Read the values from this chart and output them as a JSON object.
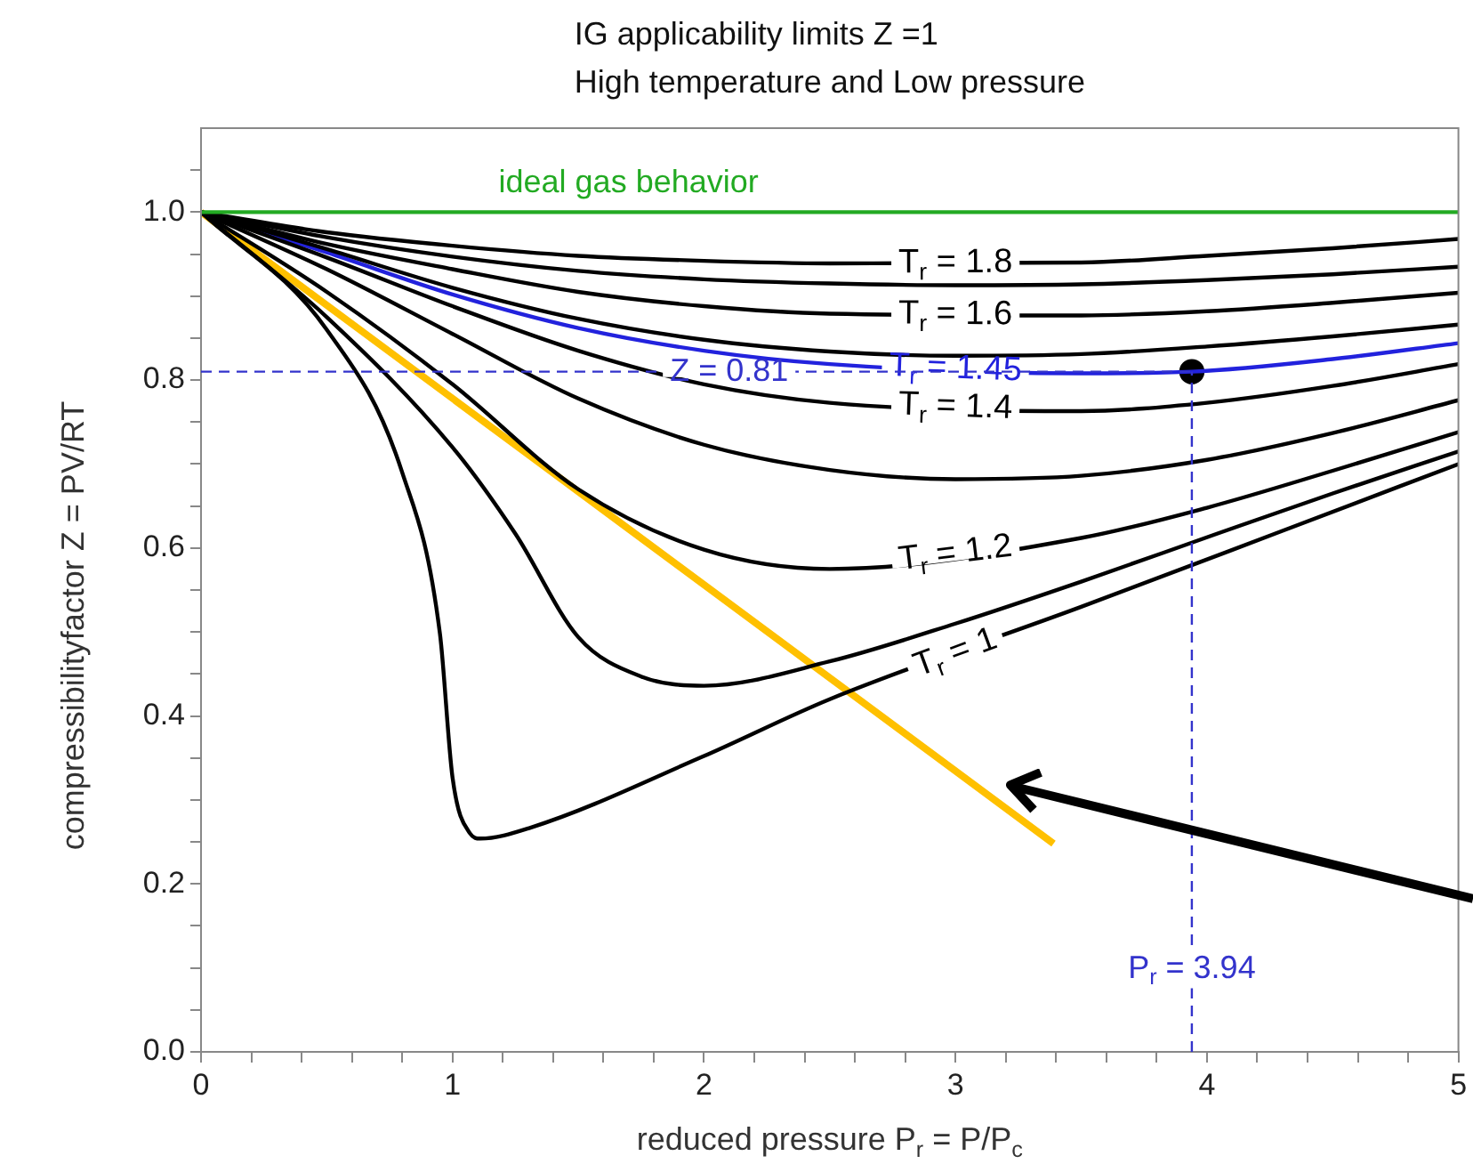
{
  "chart_data": {
    "type": "line",
    "title": "IG applicability limits Z =1",
    "subtitle": "High temperature and Low pressure",
    "xlabel": "reduced pressure P$_{r}$ = P/P$_{c}$",
    "ylabel": "compressibilityfactor Z = PV/RT",
    "xlim": [
      0,
      5
    ],
    "ylim": [
      0,
      1.1
    ],
    "xticks": [
      0,
      {
        "value": 0.2,
        "label": null
      },
      {
        "value": 0.4,
        "label": null
      },
      {
        "value": 0.6,
        "label": null
      },
      {
        "value": 0.8,
        "label": null
      },
      1,
      {
        "value": 1.2,
        "label": null
      },
      {
        "value": 1.4,
        "label": null
      },
      {
        "value": 1.6,
        "label": null
      },
      {
        "value": 1.8,
        "label": null
      },
      2,
      {
        "value": 2.2,
        "label": null
      },
      {
        "value": 2.4,
        "label": null
      },
      {
        "value": 2.6,
        "label": null
      },
      {
        "value": 2.8,
        "label": null
      },
      3,
      {
        "value": 3.2,
        "label": null
      },
      {
        "value": 3.4,
        "label": null
      },
      {
        "value": 3.6,
        "label": null
      },
      {
        "value": 3.8,
        "label": null
      },
      4,
      {
        "value": 4.2,
        "label": null
      },
      {
        "value": 4.4,
        "label": null
      },
      {
        "value": 4.6,
        "label": null
      },
      {
        "value": 4.8,
        "label": null
      },
      5
    ],
    "yticks": [
      {
        "value": 0,
        "label": "0.0"
      },
      {
        "value": 0.05,
        "label": null
      },
      {
        "value": 0.1,
        "label": null
      },
      {
        "value": 0.15,
        "label": null
      },
      {
        "value": 0.2,
        "label": "0.2"
      },
      {
        "value": 0.25,
        "label": null
      },
      {
        "value": 0.3,
        "label": null
      },
      {
        "value": 0.35,
        "label": null
      },
      {
        "value": 0.4,
        "label": "0.4"
      },
      {
        "value": 0.45,
        "label": null
      },
      {
        "value": 0.5,
        "label": null
      },
      {
        "value": 0.55,
        "label": null
      },
      {
        "value": 0.6,
        "label": "0.6"
      },
      {
        "value": 0.65,
        "label": null
      },
      {
        "value": 0.7,
        "label": null
      },
      {
        "value": 0.75,
        "label": null
      },
      {
        "value": 0.8,
        "label": "0.8"
      },
      {
        "value": 0.85,
        "label": null
      },
      {
        "value": 0.9,
        "label": null
      },
      {
        "value": 0.95,
        "label": null
      },
      {
        "value": 1,
        "label": "1.0"
      },
      {
        "value": 1.05,
        "label": null
      }
    ],
    "grid": false,
    "legend": false,
    "marker": "none",
    "line_style": "solid",
    "series": [
      {
        "name": "ideal gas behavior",
        "color": "#22aa22",
        "x": [
          0,
          5
        ],
        "values": [
          1,
          1
        ]
      },
      {
        "name": "T$_{r}$ = 1.8",
        "color": "#000000",
        "x": [
          0,
          0.5,
          1,
          1.5,
          2,
          2.5,
          3.5,
          4,
          4.5,
          5
        ],
        "values": [
          1,
          0.976,
          0.96,
          0.948,
          0.942,
          0.939,
          0.94,
          0.948,
          0.957,
          0.968
        ]
      },
      {
        "color": "#000000",
        "x": [
          0,
          0.5,
          1,
          1.5,
          2,
          2.5,
          3,
          3.5,
          4,
          4.5,
          5
        ],
        "values": [
          1,
          0.97,
          0.947,
          0.93,
          0.92,
          0.915,
          0.913,
          0.914,
          0.919,
          0.926,
          0.935
        ]
      },
      {
        "name": "T$_{r}$ = 1.6",
        "color": "#000000",
        "x": [
          0,
          0.5,
          1,
          1.5,
          2,
          2.5,
          3.5,
          4,
          4.5,
          5
        ],
        "values": [
          1,
          0.962,
          0.932,
          0.905,
          0.888,
          0.879,
          0.877,
          0.882,
          0.892,
          0.904
        ]
      },
      {
        "color": "#000000",
        "x": [
          0,
          0.5,
          1,
          1.5,
          2,
          2.5,
          3,
          3.5,
          4,
          4.5,
          5
        ],
        "values": [
          1,
          0.956,
          0.91,
          0.873,
          0.848,
          0.834,
          0.829,
          0.831,
          0.84,
          0.852,
          0.866
        ]
      },
      {
        "name": "T$_{r}$ = 1.4",
        "color": "#000000",
        "x": [
          0,
          0.5,
          1,
          1.5,
          2,
          2.5,
          3.5,
          4,
          4.5,
          5
        ],
        "values": [
          1,
          0.946,
          0.888,
          0.835,
          0.795,
          0.773,
          0.763,
          0.773,
          0.793,
          0.819
        ]
      },
      {
        "name": "T$_{r}$ = 1.45",
        "color": "#2222dd",
        "x": [
          0,
          0.5,
          1,
          1.5,
          2,
          2.5,
          3.5,
          3.94,
          4.5,
          5
        ],
        "values": [
          1,
          0.952,
          0.902,
          0.862,
          0.835,
          0.819,
          0.808,
          0.81,
          0.825,
          0.844
        ]
      },
      {
        "color": "#000000",
        "x": [
          0,
          0.5,
          1,
          1.5,
          2,
          2.5,
          3,
          3.5,
          4,
          4.5,
          5
        ],
        "values": [
          1,
          0.932,
          0.855,
          0.778,
          0.723,
          0.693,
          0.682,
          0.686,
          0.705,
          0.737,
          0.776
        ]
      },
      {
        "name": "T$_{r}$ = 1.2",
        "color": "#000000",
        "x": [
          0,
          0.5,
          1,
          1.5,
          2,
          2.5,
          3.5,
          4,
          4.5,
          5
        ],
        "values": [
          1,
          0.905,
          0.795,
          0.67,
          0.598,
          0.575,
          0.612,
          0.648,
          0.692,
          0.738
        ]
      },
      {
        "color": "#000000",
        "x": [
          0,
          0.5,
          1,
          1.25,
          1.5,
          1.75,
          2,
          2.5,
          3,
          3.5,
          4.04,
          4.5,
          5
        ],
        "values": [
          1,
          0.875,
          0.72,
          0.617,
          0.494,
          0.447,
          0.436,
          0.465,
          0.51,
          0.56,
          0.617,
          0.665,
          0.715
        ]
      },
      {
        "name": "T$_{r}$ = 1",
        "color": "#000000",
        "x": [
          0,
          0.5,
          0.8,
          0.95,
          1,
          1.07,
          1.11,
          1.31,
          1.99,
          2.5,
          3.5,
          4.27,
          5
        ],
        "values": [
          1,
          0.86,
          0.69,
          0.498,
          0.327,
          0.26,
          0.254,
          0.267,
          0.351,
          0.42,
          0.53,
          0.617,
          0.7
        ]
      },
      {
        "color": "#ffc000",
        "x": [
          0,
          3.39
        ],
        "values": [
          1,
          0.248
        ]
      },
      {
        "type": "scatter",
        "marker": "circle",
        "color": "#000000",
        "x": [
          3.94
        ],
        "values": [
          0.81
        ]
      }
    ],
    "ref_lines": [
      {
        "axis": "y",
        "value": 0.81,
        "label": "Z = 0.81",
        "color": "#3333cc",
        "line_style": "dashed"
      },
      {
        "axis": "x",
        "value": 3.94,
        "label": "P$_{r}$ = 3.94",
        "color": "#3333cc",
        "line_style": "dashed"
      }
    ]
  }
}
